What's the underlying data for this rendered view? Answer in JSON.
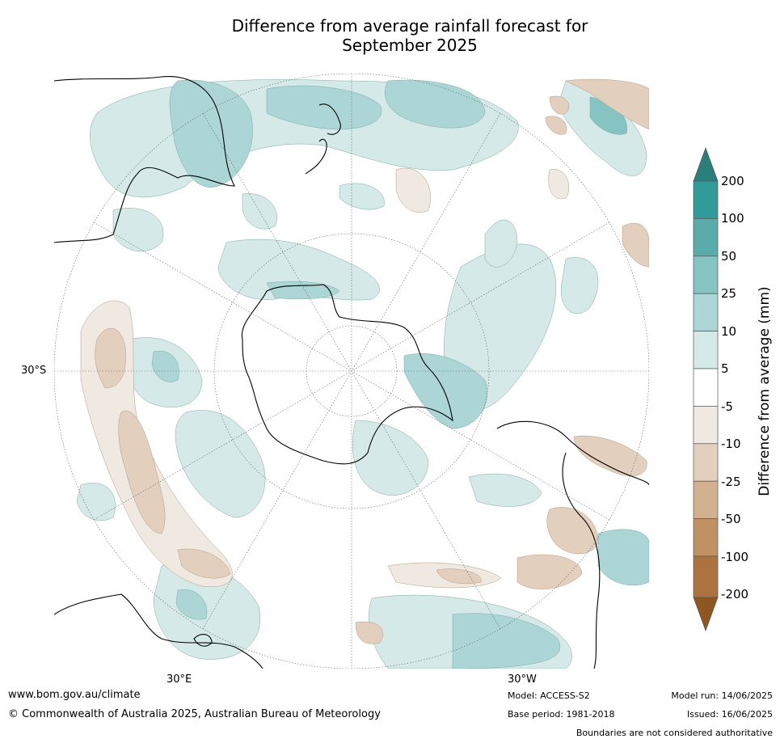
{
  "title": {
    "line1": "Difference from average rainfall forecast for",
    "line2": "September 2025"
  },
  "map": {
    "projection": "south-polar-stereographic",
    "region": "Southern Hemisphere",
    "labels": {
      "lat_30s": "30°S",
      "lon_30e": "30°E",
      "lon_30w": "30°W"
    },
    "colors": {
      "land_outline": "#000000",
      "graticule": "#666666"
    }
  },
  "colorbar": {
    "title": "Difference from average (mm)",
    "ticks": [
      "200",
      "100",
      "50",
      "25",
      "10",
      "5",
      "-5",
      "-10",
      "-25",
      "-50",
      "-100",
      "-200"
    ],
    "colors": [
      "#2a7f7b",
      "#319b99",
      "#5aacab",
      "#86c4c3",
      "#acd6d5",
      "#d5e9e8",
      "#ffffff",
      "#efe9e2",
      "#e3cfbd",
      "#d2b191",
      "#bf9163",
      "#ac7340",
      "#905620"
    ]
  },
  "footer": {
    "url": "www.bom.gov.au/climate",
    "copyright": "© Commonwealth of Australia 2025, Australian Bureau of Meteorology",
    "model": "Model: ACCESS-S2",
    "base_period": "Base period: 1981-2018",
    "model_run": "Model run: 14/06/2025",
    "issued": "Issued: 16/06/2025",
    "disclaimer": "Boundaries are not considered authoritative"
  }
}
